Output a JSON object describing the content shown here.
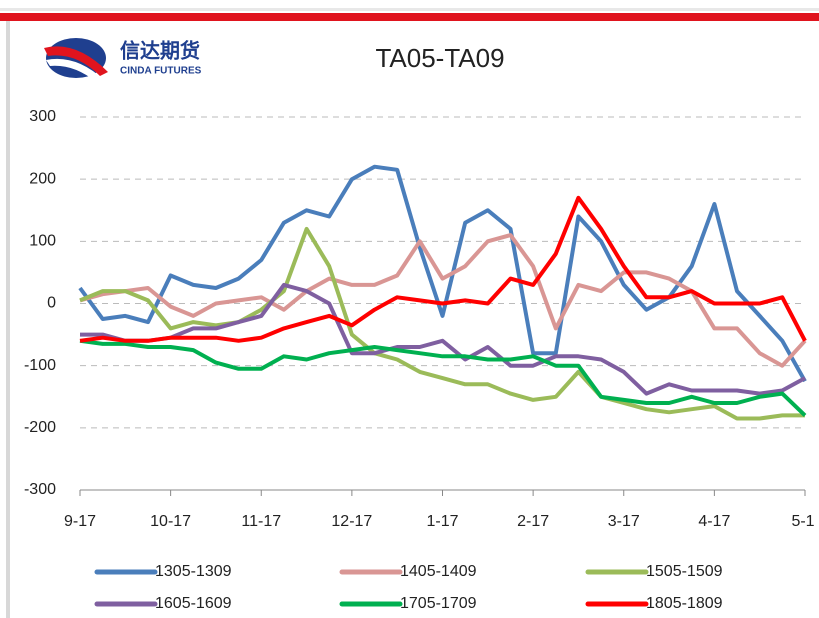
{
  "header": {
    "logo_cn": "信达期货",
    "logo_en": "CINDA FUTURES"
  },
  "chart_data": {
    "type": "line",
    "title": "TA05-TA09",
    "categories": [
      "9-17",
      null,
      null,
      null,
      "10-17",
      null,
      null,
      null,
      "11-17",
      null,
      null,
      null,
      "12-17",
      null,
      null,
      null,
      "1-17",
      null,
      null,
      null,
      "2-17",
      null,
      null,
      null,
      "3-17",
      null,
      null,
      null,
      "4-17",
      null,
      null,
      null,
      "5-1"
    ],
    "ylim": [
      -300,
      300
    ],
    "yticks": [
      -300,
      -200,
      -100,
      0,
      100,
      200,
      300
    ],
    "grid": true,
    "series": [
      {
        "name": "1305-1309",
        "color": "#4a7ebb",
        "values": [
          25,
          -25,
          -20,
          -30,
          45,
          30,
          25,
          40,
          70,
          130,
          150,
          140,
          200,
          220,
          215,
          90,
          -20,
          130,
          150,
          120,
          -80,
          -80,
          140,
          100,
          30,
          -10,
          10,
          60,
          160,
          20,
          -20,
          -60,
          -125
        ]
      },
      {
        "name": "1405-1409",
        "color": "#d99694",
        "values": [
          5,
          15,
          20,
          25,
          -5,
          -20,
          0,
          5,
          10,
          -10,
          20,
          40,
          30,
          30,
          45,
          100,
          40,
          60,
          100,
          110,
          60,
          -40,
          30,
          20,
          50,
          50,
          40,
          20,
          -40,
          -40,
          -80,
          -100,
          -60
        ]
      },
      {
        "name": "1505-1509",
        "color": "#9bbb59",
        "values": [
          5,
          20,
          20,
          5,
          -40,
          -30,
          -35,
          -30,
          -10,
          20,
          120,
          60,
          -50,
          -80,
          -90,
          -110,
          -120,
          -130,
          -130,
          -145,
          -155,
          -150,
          -110,
          -150,
          -160,
          -170,
          -175,
          -170,
          -165,
          -185,
          -185,
          -180,
          -180
        ]
      },
      {
        "name": "1605-1609",
        "color": "#7f5fa0",
        "values": [
          -50,
          -50,
          -60,
          -60,
          -55,
          -40,
          -40,
          -30,
          -20,
          30,
          20,
          0,
          -80,
          -80,
          -70,
          -70,
          -60,
          -90,
          -70,
          -100,
          -100,
          -85,
          -85,
          -90,
          -110,
          -145,
          -130,
          -140,
          -140,
          -140,
          -145,
          -140,
          -120
        ]
      },
      {
        "name": "1705-1709",
        "color": "#00b050",
        "values": [
          -60,
          -65,
          -65,
          -70,
          -70,
          -75,
          -95,
          -105,
          -105,
          -85,
          -90,
          -80,
          -75,
          -70,
          -75,
          -80,
          -85,
          -85,
          -90,
          -90,
          -85,
          -100,
          -100,
          -150,
          -155,
          -160,
          -160,
          -150,
          -160,
          -160,
          -150,
          -145,
          -180
        ]
      },
      {
        "name": "1805-1809",
        "color": "#ff0000",
        "values": [
          -60,
          -55,
          -60,
          -60,
          -55,
          -55,
          -55,
          -60,
          -55,
          -40,
          -30,
          -20,
          -35,
          -10,
          10,
          5,
          0,
          5,
          0,
          40,
          30,
          80,
          170,
          120,
          60,
          10,
          10,
          20,
          0,
          0,
          0,
          10,
          -60
        ]
      }
    ]
  }
}
